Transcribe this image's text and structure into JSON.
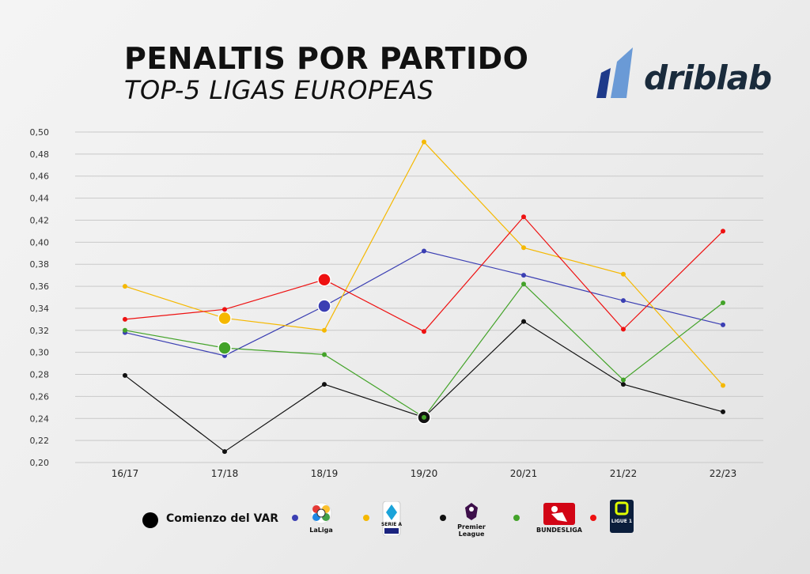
{
  "header": {
    "title": "PENALTIS POR PARTIDO",
    "subtitle": "TOP-5 LIGAS EUROPEAS",
    "brand": "driblab"
  },
  "legend": {
    "var_label": "Comienzo del VAR",
    "laliga": "LaLiga",
    "seriea": "SERIE A",
    "premier": "Premier League",
    "bundesliga": "BUNDESLIGA",
    "ligue1": "LIGUE 1"
  },
  "chart_data": {
    "type": "line",
    "categories": [
      "16/17",
      "17/18",
      "18/19",
      "19/20",
      "20/21",
      "21/22",
      "22/23"
    ],
    "yticks": [
      "0,20",
      "0,22",
      "0,24",
      "0,26",
      "0,28",
      "0,30",
      "0,32",
      "0,34",
      "0,36",
      "0,38",
      "0,40",
      "0,42",
      "0,44",
      "0,46",
      "0,48",
      "0,50"
    ],
    "ylim": [
      0.2,
      0.5
    ],
    "grid": true,
    "series": [
      {
        "name": "LaLiga",
        "color": "#3b3fb3",
        "values": [
          0.318,
          0.297,
          0.342,
          0.392,
          0.37,
          0.347,
          0.325
        ],
        "var_index": 2
      },
      {
        "name": "Serie A",
        "color": "#f5b800",
        "values": [
          0.36,
          0.331,
          0.32,
          0.491,
          0.395,
          0.371,
          0.27
        ],
        "var_index": 1
      },
      {
        "name": "Premier League",
        "color": "#111111",
        "values": [
          0.279,
          0.21,
          0.271,
          0.241,
          0.328,
          0.271,
          0.246
        ],
        "var_index": 3
      },
      {
        "name": "Bundesliga",
        "color": "#43a329",
        "values": [
          0.32,
          0.304,
          0.298,
          0.241,
          0.362,
          0.275,
          0.345
        ],
        "var_index": 1
      },
      {
        "name": "Ligue 1",
        "color": "#ee1111",
        "values": [
          0.33,
          0.339,
          0.366,
          0.319,
          0.423,
          0.321,
          0.41
        ],
        "var_index": 2
      }
    ]
  }
}
